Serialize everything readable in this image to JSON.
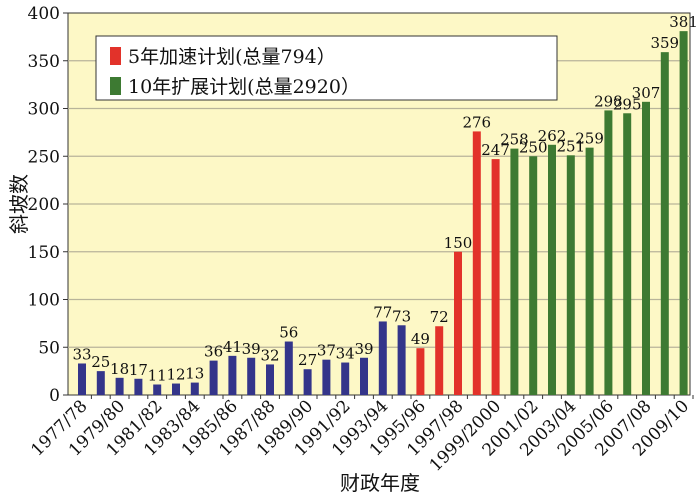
{
  "chart_data": {
    "type": "bar",
    "xlabel": "财政年度",
    "ylabel": "斜坡数",
    "ylim": [
      0,
      400
    ],
    "yticks": [
      0,
      50,
      100,
      150,
      200,
      250,
      300,
      350,
      400
    ],
    "grid": true,
    "legend_position": "top-left",
    "categories": [
      "1977/78",
      "1978/79",
      "1979/80",
      "1980/81",
      "1981/82",
      "1982/83",
      "1983/84",
      "1984/85",
      "1985/86",
      "1986/87",
      "1987/88",
      "1988/89",
      "1989/90",
      "1990/91",
      "1991/92",
      "1992/93",
      "1993/94",
      "1994/95",
      "1995/96",
      "1996/97",
      "1997/98",
      "1998/99",
      "1999/2000",
      "2000/01",
      "2001/02",
      "2002/03",
      "2003/04",
      "2004/05",
      "2005/06",
      "2006/07",
      "2007/08",
      "2008/09",
      "2009/10"
    ],
    "tick_labels_shown": [
      "1977/78",
      "1979/80",
      "1981/82",
      "1983/84",
      "1985/86",
      "1987/88",
      "1989/90",
      "1991/92",
      "1993/94",
      "1995/96",
      "1997/98",
      "1999/2000",
      "2001/02",
      "2003/04",
      "2005/06",
      "2007/08",
      "2009/10"
    ],
    "values": [
      33,
      25,
      18,
      17,
      11,
      12,
      13,
      36,
      41,
      39,
      32,
      56,
      27,
      37,
      34,
      39,
      77,
      73,
      49,
      72,
      150,
      276,
      247,
      258,
      250,
      262,
      251,
      259,
      298,
      295,
      307,
      359,
      381
    ],
    "series_index": [
      0,
      0,
      0,
      0,
      0,
      0,
      0,
      0,
      0,
      0,
      0,
      0,
      0,
      0,
      0,
      0,
      0,
      0,
      1,
      1,
      1,
      1,
      1,
      2,
      2,
      2,
      2,
      2,
      2,
      2,
      2,
      2,
      2
    ],
    "series": [
      {
        "name": "",
        "color": "#34358a"
      },
      {
        "name": "5年加速计划(总量794）",
        "color": "#e2322a"
      },
      {
        "name": "10年扩展计划(总量2920）",
        "color": "#3d7a32"
      }
    ],
    "background": "#fdf8c6"
  }
}
